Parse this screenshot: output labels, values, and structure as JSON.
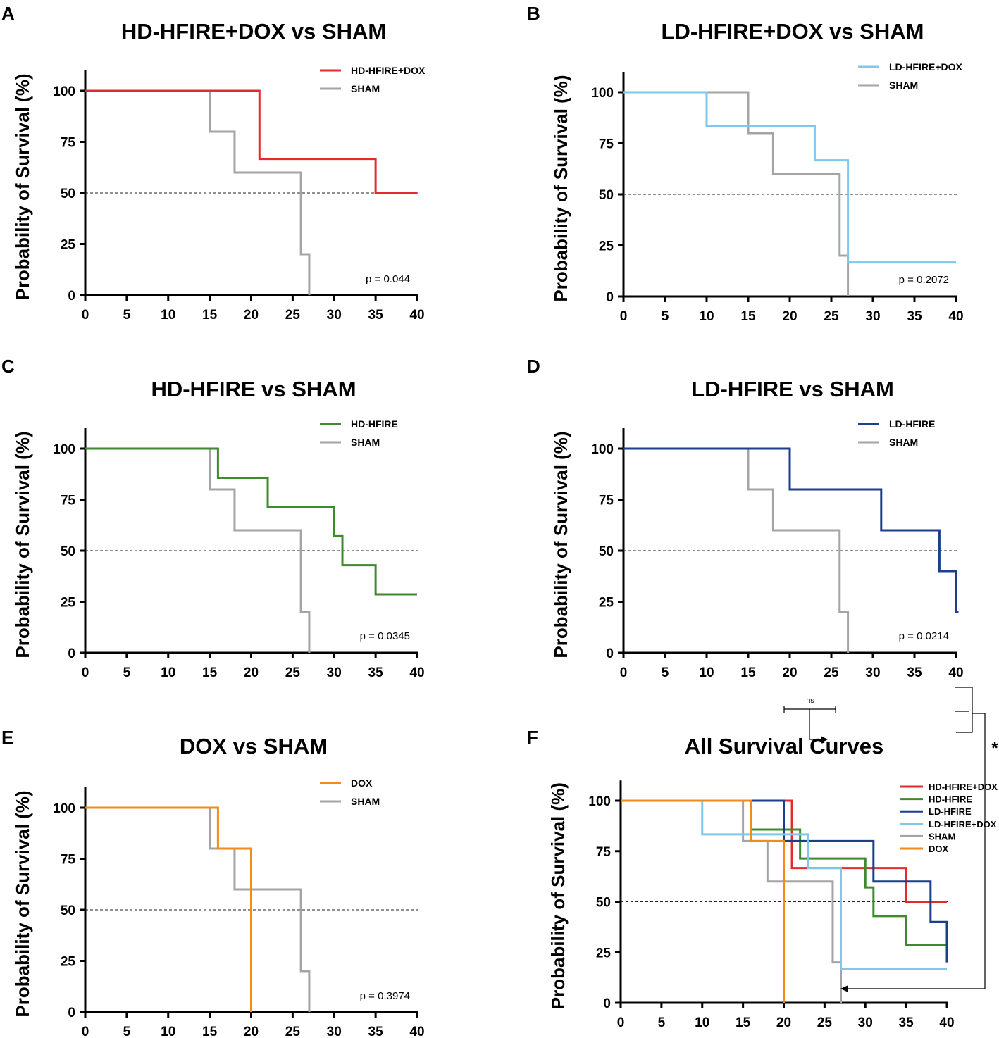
{
  "figure": {
    "colors": {
      "HD-HFIRE+DOX": "#e32b2b",
      "HD-HFIRE": "#3f8a2e",
      "LD-HFIRE": "#1c3f8c",
      "LD-HFIRE+DOX": "#7ec8ec",
      "SHAM": "#a4a4a4",
      "DOX": "#f28a1c",
      "median_line": "#222222"
    }
  },
  "chart_data": [
    {
      "panel": "A",
      "type": "line",
      "subtype": "kaplan-meier-step",
      "title": "HD-HFIRE+DOX vs SHAM",
      "xlabel": "",
      "ylabel": "Probability of Survival (%)",
      "xlim": [
        0,
        40
      ],
      "ylim": [
        0,
        110
      ],
      "xticks": [
        0,
        5,
        10,
        15,
        20,
        25,
        30,
        35,
        40
      ],
      "yticks": [
        0,
        25,
        50,
        75,
        100
      ],
      "median_line": 50,
      "legend_position": "top-right",
      "p_value": "p = 0.044",
      "series": [
        {
          "name": "HD-HFIRE+DOX",
          "x": [
            0,
            21,
            35,
            40
          ],
          "y": [
            100,
            66.7,
            50,
            50
          ]
        },
        {
          "name": "SHAM",
          "x": [
            0,
            15,
            18,
            26,
            27
          ],
          "y": [
            100,
            80,
            60,
            20,
            0
          ]
        }
      ]
    },
    {
      "panel": "B",
      "type": "line",
      "subtype": "kaplan-meier-step",
      "title": "LD-HFIRE+DOX vs SHAM",
      "xlabel": "",
      "ylabel": "Probability of Survival (%)",
      "xlim": [
        0,
        40
      ],
      "ylim": [
        0,
        110
      ],
      "xticks": [
        0,
        5,
        10,
        15,
        20,
        25,
        30,
        35,
        40
      ],
      "yticks": [
        0,
        25,
        50,
        75,
        100
      ],
      "median_line": 50,
      "legend_position": "top-right",
      "p_value": "p = 0.2072",
      "series": [
        {
          "name": "LD-HFIRE+DOX",
          "x": [
            0,
            10,
            23,
            27,
            40
          ],
          "y": [
            100,
            83.3,
            66.7,
            16.7,
            16.7
          ]
        },
        {
          "name": "SHAM",
          "x": [
            0,
            15,
            18,
            26,
            27
          ],
          "y": [
            100,
            80,
            60,
            20,
            0
          ]
        }
      ]
    },
    {
      "panel": "C",
      "type": "line",
      "subtype": "kaplan-meier-step",
      "title": "HD-HFIRE vs SHAM",
      "xlabel": "",
      "ylabel": "Probability of Survival (%)",
      "xlim": [
        0,
        40
      ],
      "ylim": [
        0,
        110
      ],
      "xticks": [
        0,
        5,
        10,
        15,
        20,
        25,
        30,
        35,
        40
      ],
      "yticks": [
        0,
        25,
        50,
        75,
        100
      ],
      "median_line": 50,
      "legend_position": "top-right",
      "p_value": "p = 0.0345",
      "series": [
        {
          "name": "HD-HFIRE",
          "x": [
            0,
            16,
            22,
            30,
            31,
            35,
            40
          ],
          "y": [
            100,
            85.7,
            71.4,
            57.1,
            42.9,
            28.6,
            28.6
          ]
        },
        {
          "name": "SHAM",
          "x": [
            0,
            15,
            18,
            26,
            27
          ],
          "y": [
            100,
            80,
            60,
            20,
            0
          ]
        }
      ]
    },
    {
      "panel": "D",
      "type": "line",
      "subtype": "kaplan-meier-step",
      "title": "LD-HFIRE vs SHAM",
      "xlabel": "",
      "ylabel": "Probability of Survival (%)",
      "xlim": [
        0,
        40
      ],
      "ylim": [
        0,
        110
      ],
      "xticks": [
        0,
        5,
        10,
        15,
        20,
        25,
        30,
        35,
        40
      ],
      "yticks": [
        0,
        25,
        50,
        75,
        100
      ],
      "median_line": 50,
      "legend_position": "top-right",
      "p_value": "p = 0.0214",
      "series": [
        {
          "name": "LD-HFIRE",
          "x": [
            0,
            20,
            31,
            38,
            40,
            40.3
          ],
          "y": [
            100,
            80,
            60,
            40,
            20,
            20
          ]
        },
        {
          "name": "SHAM",
          "x": [
            0,
            15,
            18,
            26,
            27
          ],
          "y": [
            100,
            80,
            60,
            20,
            0
          ]
        }
      ]
    },
    {
      "panel": "E",
      "type": "line",
      "subtype": "kaplan-meier-step",
      "title": "DOX vs SHAM",
      "xlabel": "",
      "ylabel": "Probability of Survival (%)",
      "xlim": [
        0,
        40
      ],
      "ylim": [
        0,
        110
      ],
      "xticks": [
        0,
        5,
        10,
        15,
        20,
        25,
        30,
        35,
        40
      ],
      "yticks": [
        0,
        25,
        50,
        75,
        100
      ],
      "median_line": 50,
      "legend_position": "top-right",
      "p_value": "p = 0.3974",
      "series": [
        {
          "name": "DOX",
          "x": [
            0,
            16,
            20
          ],
          "y": [
            100,
            80,
            0
          ]
        },
        {
          "name": "SHAM",
          "x": [
            0,
            15,
            18,
            26,
            27
          ],
          "y": [
            100,
            80,
            60,
            20,
            0
          ]
        }
      ]
    },
    {
      "panel": "F",
      "type": "line",
      "subtype": "kaplan-meier-step",
      "title": "All Survival Curves",
      "xlabel": "",
      "ylabel": "Probability of Survival (%)",
      "xlim": [
        0,
        40
      ],
      "ylim": [
        0,
        110
      ],
      "xticks": [
        0,
        5,
        10,
        15,
        20,
        25,
        30,
        35,
        40
      ],
      "yticks": [
        0,
        25,
        50,
        75,
        100
      ],
      "median_line": 50,
      "legend_position": "top-right",
      "annotations": {
        "ns": "ns",
        "significance": "*"
      },
      "series": [
        {
          "name": "HD-HFIRE+DOX",
          "x": [
            0,
            21,
            35,
            40
          ],
          "y": [
            100,
            66.7,
            50,
            50
          ]
        },
        {
          "name": "HD-HFIRE",
          "x": [
            0,
            16,
            22,
            30,
            31,
            35,
            40
          ],
          "y": [
            100,
            85.7,
            71.4,
            57.1,
            42.9,
            28.6,
            28.6
          ]
        },
        {
          "name": "LD-HFIRE",
          "x": [
            0,
            20,
            31,
            38,
            40
          ],
          "y": [
            100,
            80,
            60,
            40,
            20
          ]
        },
        {
          "name": "LD-HFIRE+DOX",
          "x": [
            0,
            10,
            23,
            27,
            40
          ],
          "y": [
            100,
            83.3,
            66.7,
            16.7,
            16.7
          ]
        },
        {
          "name": "SHAM",
          "x": [
            0,
            15,
            18,
            26,
            27
          ],
          "y": [
            100,
            80,
            60,
            20,
            0
          ]
        },
        {
          "name": "DOX",
          "x": [
            0,
            16,
            20
          ],
          "y": [
            100,
            80,
            0
          ]
        }
      ]
    }
  ]
}
